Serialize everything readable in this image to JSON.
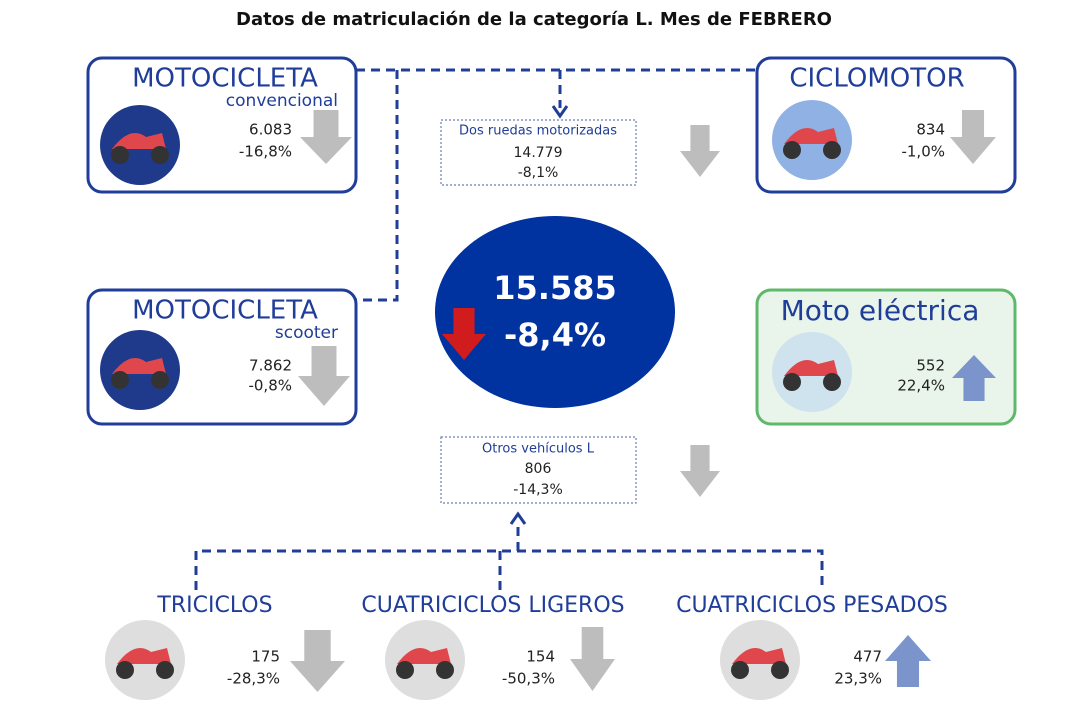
{
  "title": "Datos de matriculación de la categoría L. Mes de FEBRERO",
  "total": {
    "value": "15.585",
    "change": "-8,4%",
    "trend": "down"
  },
  "panels": [
    {
      "title": "MOTOCICLETA",
      "subtitle": "convencional",
      "value": "6.083",
      "change": "-16,8%",
      "trend": "down"
    },
    {
      "title": "CICLOMOTOR",
      "value": "834",
      "change": "-1,0%",
      "trend": "down"
    },
    {
      "title": "MOTOCICLETA",
      "subtitle": "scooter",
      "value": "7.862",
      "change": "-0,8%",
      "trend": "down"
    },
    {
      "title": "Moto eléctrica",
      "value": "552",
      "change": "22,4%",
      "trend": "up"
    },
    {
      "title": "Dos ruedas motorizadas",
      "value": "14.779",
      "change": "-8,1%",
      "trend": "down"
    },
    {
      "title": "Otros vehículos L",
      "value": "806",
      "change": "-14,3%",
      "trend": "down"
    },
    {
      "title": "TRICICLOS",
      "value": "175",
      "change": "-28,3%",
      "trend": "down"
    },
    {
      "title": "CUATRICICLOS LIGEROS",
      "value": "154",
      "change": "-50,3%",
      "trend": "down"
    },
    {
      "title": "CUATRICICLOS PESADOS",
      "value": "477",
      "change": "23,3%",
      "trend": "up"
    }
  ]
}
